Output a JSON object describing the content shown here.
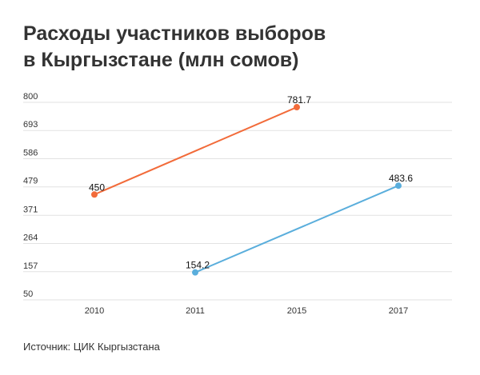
{
  "title_line1": "Расходы участников выборов",
  "title_line2": "в Кыргызстане (млн сомов)",
  "source": "Источник: ЦИК Кыргызстана",
  "chart_data": {
    "type": "line",
    "x": [
      "2010",
      "2011",
      "2015",
      "2017"
    ],
    "yticks": [
      "800",
      "693",
      "586",
      "479",
      "371",
      "264",
      "157",
      "50"
    ],
    "ylim": [
      50,
      800
    ],
    "grid": true,
    "series": [
      {
        "color": "#f26b3a",
        "points": [
          {
            "x": "2010",
            "y": 450,
            "label": "450"
          },
          {
            "x": "2015",
            "y": 781.7,
            "label": "781.7"
          }
        ]
      },
      {
        "color": "#5aaedc",
        "points": [
          {
            "x": "2011",
            "y": 154.2,
            "label": "154.2"
          },
          {
            "x": "2017",
            "y": 483.6,
            "label": "483.6"
          }
        ]
      }
    ]
  }
}
